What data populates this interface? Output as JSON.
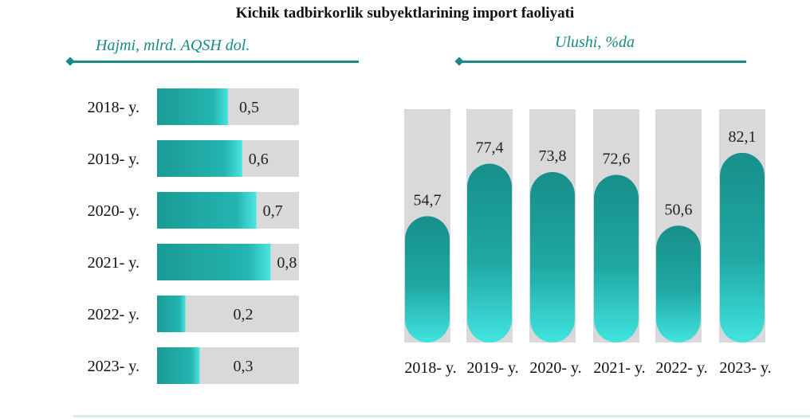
{
  "title": "Kichik tadbirkorlik subyektlarining import faoliyati",
  "left_subtitle": "Hajmi, mlrd. AQSH dol.",
  "right_subtitle": "Ulushi, %da",
  "colors": {
    "teal_dark": "#1a9a96",
    "teal_light": "#3fe0dc",
    "track": "#d9d9d9",
    "accent_line": "#1a8a86"
  },
  "chart_data": [
    {
      "type": "bar",
      "orientation": "horizontal",
      "title": "Hajmi, mlrd. AQSH dol.",
      "categories": [
        "2018- y.",
        "2019- y.",
        "2020- y.",
        "2021- y.",
        "2022- y.",
        "2023- y."
      ],
      "values": [
        0.5,
        0.6,
        0.7,
        0.8,
        0.2,
        0.3
      ],
      "value_labels": [
        "0,5",
        "0,6",
        "0,7",
        "0,8",
        "0,2",
        "0,3"
      ],
      "xlim": [
        0,
        1.0
      ],
      "grid": false,
      "legend": "none"
    },
    {
      "type": "bar",
      "orientation": "vertical",
      "title": "Ulushi, %da",
      "categories": [
        "2018- y.",
        "2019- y.",
        "2020- y.",
        "2021- y.",
        "2022- y.",
        "2023- y."
      ],
      "values": [
        54.7,
        77.4,
        73.8,
        72.6,
        50.6,
        82.1
      ],
      "value_labels": [
        "54,7",
        "77,4",
        "73,8",
        "72,6",
        "50,6",
        "82,1"
      ],
      "ylim": [
        0,
        100
      ],
      "grid": false,
      "legend": "none"
    }
  ]
}
